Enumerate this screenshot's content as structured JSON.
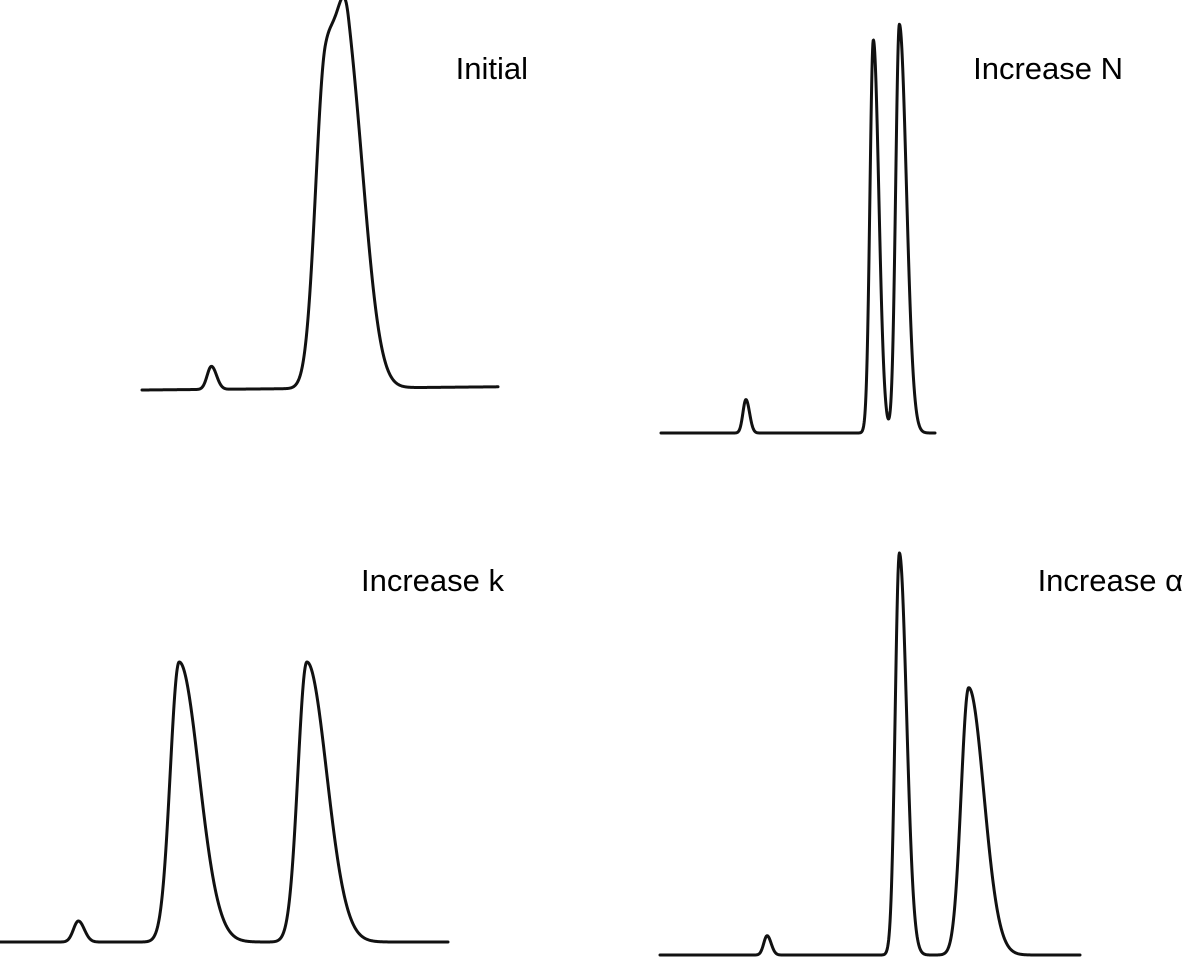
{
  "chart_data": [
    {
      "type": "line",
      "title": "Initial",
      "peaks": [
        {
          "t": 0.195,
          "h": 0.072,
          "w": 0.012,
          "tail": 1.2
        },
        {
          "t": 0.515,
          "h": 0.995,
          "w": 0.028,
          "tail": 1.3
        },
        {
          "t": 0.58,
          "h": 0.955,
          "w": 0.029,
          "tail": 1.6
        }
      ],
      "baseline_drift": -0.01
    },
    {
      "type": "line",
      "title": "Increase N",
      "peaks": [
        {
          "t": 0.31,
          "h": 0.085,
          "w": 0.011,
          "tail": 1.2
        },
        {
          "t": 0.775,
          "h": 1.0,
          "w": 0.0125,
          "tail": 1.6
        },
        {
          "t": 0.87,
          "h": 1.04,
          "w": 0.0135,
          "tail": 1.9
        }
      ],
      "baseline_drift": 0.0
    },
    {
      "type": "line",
      "title": "Increase k",
      "peaks": [
        {
          "t": 0.175,
          "h": 0.075,
          "w": 0.011,
          "tail": 1.2
        },
        {
          "t": 0.4,
          "h": 1.0,
          "w": 0.02,
          "tail": 2.2
        },
        {
          "t": 0.685,
          "h": 1.0,
          "w": 0.02,
          "tail": 2.2
        }
      ],
      "baseline_drift": 0.0
    },
    {
      "type": "line",
      "title": "Increase α",
      "peaks": [
        {
          "t": 0.255,
          "h": 0.048,
          "w": 0.008,
          "tail": 1.2
        },
        {
          "t": 0.57,
          "h": 1.0,
          "w": 0.01,
          "tail": 1.7
        },
        {
          "t": 0.735,
          "h": 0.665,
          "w": 0.018,
          "tail": 2.0
        }
      ],
      "baseline_drift": 0.0
    }
  ]
}
